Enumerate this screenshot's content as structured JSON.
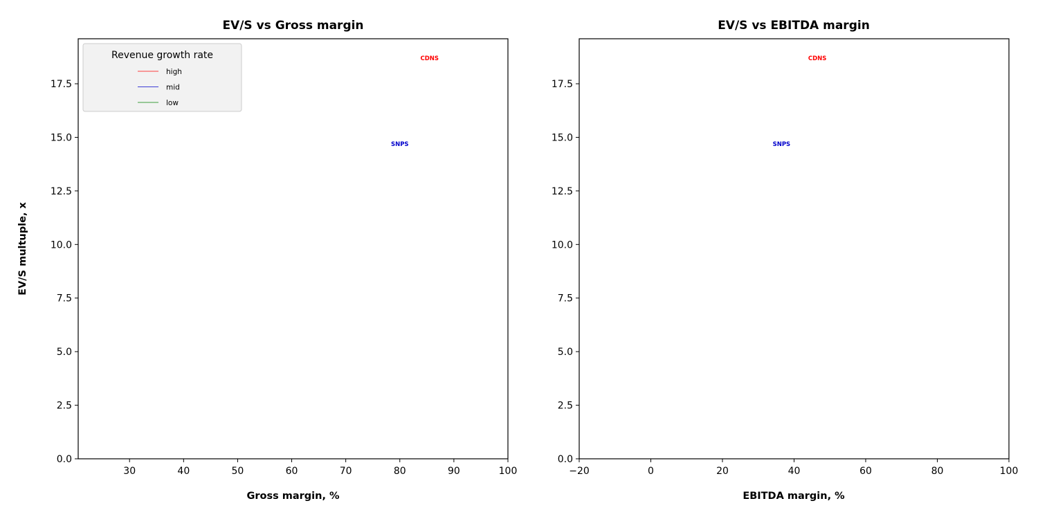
{
  "chart_data": [
    {
      "type": "scatter",
      "title": "EV/S vs Gross margin",
      "xlabel": "Gross margin, %",
      "ylabel": "EV/S multuple, x",
      "xlim": [
        20.5,
        100
      ],
      "ylim": [
        0,
        19.6
      ],
      "xticks": [
        30,
        40,
        50,
        60,
        70,
        80,
        90,
        100
      ],
      "xtick_labels": [
        "30",
        "40",
        "50",
        "60",
        "70",
        "80",
        "90",
        "100"
      ],
      "yticks": [
        0,
        2.5,
        5,
        7.5,
        10,
        12.5,
        15,
        17.5
      ],
      "ytick_labels": [
        "0.0",
        "2.5",
        "5.0",
        "7.5",
        "10.0",
        "12.5",
        "15.0",
        "17.5"
      ],
      "points": [
        {
          "label": "CDNS",
          "x": 85.5,
          "y": 18.7,
          "group": "high"
        },
        {
          "label": "SNPS",
          "x": 80.0,
          "y": 14.7,
          "group": "mid"
        }
      ],
      "legend": {
        "title": "Revenue growth rate",
        "placement": "upper-left",
        "entries": [
          {
            "label": "high",
            "color": "#ff0000"
          },
          {
            "label": "mid",
            "color": "#0000cc"
          },
          {
            "label": "low",
            "color": "#008000"
          }
        ]
      }
    },
    {
      "type": "scatter",
      "title": "EV/S vs EBITDA margin",
      "xlabel": "EBITDA margin, %",
      "ylabel": "",
      "xlim": [
        -20,
        100
      ],
      "ylim": [
        0,
        19.6
      ],
      "xticks": [
        -20,
        0,
        20,
        40,
        60,
        80,
        100
      ],
      "xtick_labels": [
        "−20",
        "0",
        "20",
        "40",
        "60",
        "80",
        "100"
      ],
      "yticks": [
        0,
        2.5,
        5,
        7.5,
        10,
        12.5,
        15,
        17.5
      ],
      "ytick_labels": [
        "0.0",
        "2.5",
        "5.0",
        "7.5",
        "10.0",
        "12.5",
        "15.0",
        "17.5"
      ],
      "points": [
        {
          "label": "CDNS",
          "x": 46.5,
          "y": 18.7,
          "group": "high"
        },
        {
          "label": "SNPS",
          "x": 36.5,
          "y": 14.7,
          "group": "mid"
        }
      ]
    }
  ],
  "colors": {
    "high": "#ff0000",
    "mid": "#0000cc",
    "low": "#008000",
    "legend_bg": "#f2f2f2",
    "legend_border": "#cccccc"
  }
}
